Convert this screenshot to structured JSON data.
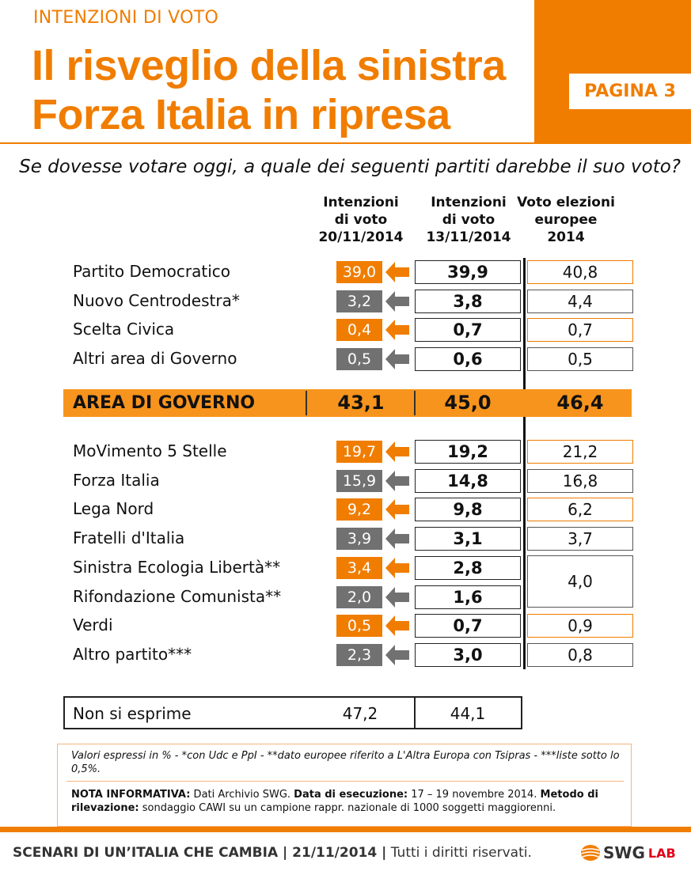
{
  "header": {
    "kicker": "INTENZIONI DI VOTO",
    "title_line1": "Il risveglio della sinistra",
    "title_line2": "Forza Italia in ripresa",
    "page_badge": "PAGINA 3"
  },
  "question": "Se dovesse votare oggi, a quale dei seguenti partiti darebbe il suo voto?",
  "columns": {
    "col1": "Intenzioni\ndi voto\n20/11/2014",
    "col2": "Intenzioni\ndi voto\n13/11/2014",
    "col3": "Voto elezioni\neuropee\n2014"
  },
  "group1": [
    {
      "party": "Partito Democratico",
      "v20": "39,0",
      "v13": "39,9",
      "eu": "40,8",
      "trend": "up"
    },
    {
      "party": "Nuovo Centrodestra*",
      "v20": "3,2",
      "v13": "3,8",
      "eu": "4,4",
      "trend": "down"
    },
    {
      "party": "Scelta Civica",
      "v20": "0,4",
      "v13": "0,7",
      "eu": "0,7",
      "trend": "up"
    },
    {
      "party": "Altri area di Governo",
      "v20": "0,5",
      "v13": "0,6",
      "eu": "0,5",
      "trend": "down"
    }
  ],
  "government_area": {
    "label": "AREA DI GOVERNO",
    "v20": "43,1",
    "v13": "45,0",
    "eu": "46,4"
  },
  "group2": [
    {
      "party": "MoVimento 5 Stelle",
      "v20": "19,7",
      "v13": "19,2",
      "eu": "21,2",
      "trend": "up"
    },
    {
      "party": "Forza Italia",
      "v20": "15,9",
      "v13": "14,8",
      "eu": "16,8",
      "trend": "down"
    },
    {
      "party": "Lega Nord",
      "v20": "9,2",
      "v13": "9,8",
      "eu": "6,2",
      "trend": "up"
    },
    {
      "party": "Fratelli d'Italia",
      "v20": "3,9",
      "v13": "3,1",
      "eu": "3,7",
      "trend": "down"
    },
    {
      "party": "Sinistra Ecologia Libertà**",
      "v20": "3,4",
      "v13": "2,8",
      "eu": "",
      "trend": "up"
    },
    {
      "party": "Rifondazione Comunista**",
      "v20": "2,0",
      "v13": "1,6",
      "eu": "",
      "trend": "down"
    },
    {
      "party": "Verdi",
      "v20": "0,5",
      "v13": "0,7",
      "eu": "0,9",
      "trend": "up"
    },
    {
      "party": "Altro partito***",
      "v20": "2,3",
      "v13": "3,0",
      "eu": "0,8",
      "trend": "down"
    }
  ],
  "merged_eu_value": "4,0",
  "non_si_esprime": {
    "label": "Non si esprime",
    "v20": "47,2",
    "v13": "44,1"
  },
  "notes": {
    "line1": "Valori espressi in % - *con Udc e PpI  - **dato europee riferito a L'Altra Europa con Tsipras - ***liste sotto lo 0,5%.",
    "nota_label": "NOTA INFORMATIVA:",
    "nota_text": " Dati Archivio SWG. ",
    "data_label": "Data di esecuzione:",
    "data_text": " 17 – 19 novembre 2014. ",
    "metodo_label": "Metodo di rilevazione:",
    "metodo_text": " sondaggio CAWI su un campione rappr. nazionale di 1000 soggetti maggiorenni."
  },
  "footer": {
    "title": "SCENARI DI UN’ITALIA CHE CAMBIA | 21/11/2014 |",
    "rights": " Tutti i diritti riservati.",
    "logo_main": "SWG",
    "logo_sub": "LAB"
  },
  "colors": {
    "accent": "#f07d00",
    "up": "#f07d00",
    "down": "#717171",
    "gov_bar": "#f7941d"
  },
  "icons": {
    "up": "arrow-left-orange-icon",
    "down": "arrow-left-grey-icon",
    "logo": "swg-globe-icon"
  }
}
